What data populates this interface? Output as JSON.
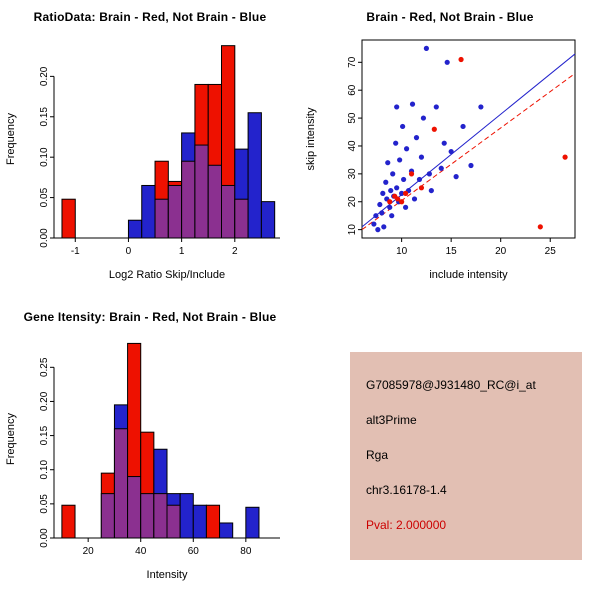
{
  "colors": {
    "red": "#ee1100",
    "blue": "#2323cc",
    "overlap": "#8b3090",
    "axis": "#000000",
    "info_bg": "#e2bfb3",
    "pval": "#cc0000"
  },
  "chart_data": [
    {
      "id": "ratio_histogram",
      "type": "bar",
      "title": "RatioData: Brain - Red, Not Brain - Blue",
      "xlabel": "Log2 Ratio Skip/Include",
      "ylabel": "Frequency",
      "bin_start": -1.25,
      "bin_width": 0.25,
      "xlim": [
        -1.4,
        2.85
      ],
      "ylim": [
        0,
        0.245
      ],
      "xtick_values": [
        -1,
        0,
        1,
        2
      ],
      "xtick_labels": [
        "-1",
        "0",
        "1",
        "2"
      ],
      "ytick_values": [
        0,
        0.05,
        0.1,
        0.15,
        0.2
      ],
      "ytick_labels": [
        "0.00",
        "0.05",
        "0.10",
        "0.15",
        "0.20"
      ],
      "series": [
        {
          "name": "Brain",
          "color": "red",
          "heights": [
            0.048,
            0,
            0,
            0,
            0,
            0,
            0,
            0.095,
            0.07,
            0.095,
            0.19,
            0.19,
            0.238,
            0.048,
            0,
            0
          ]
        },
        {
          "name": "Not Brain",
          "color": "blue",
          "heights": [
            0,
            0,
            0,
            0,
            0,
            0.022,
            0.065,
            0.048,
            0.065,
            0.13,
            0.115,
            0.09,
            0.065,
            0.11,
            0.155,
            0.045
          ]
        }
      ]
    },
    {
      "id": "intensity_scatter",
      "type": "scatter",
      "title": "Brain - Red, Not Brain - Blue",
      "xlabel": "include intensity",
      "ylabel": "skip intensity",
      "xlim": [
        6,
        27.5
      ],
      "ylim": [
        7,
        78
      ],
      "xtick_values": [
        10,
        15,
        20,
        25
      ],
      "xtick_labels": [
        "10",
        "15",
        "20",
        "25"
      ],
      "ytick_values": [
        10,
        20,
        30,
        40,
        50,
        60,
        70
      ],
      "ytick_labels": [
        "10",
        "20",
        "30",
        "40",
        "50",
        "60",
        "70"
      ],
      "series": [
        {
          "name": "Not Brain",
          "color": "blue",
          "points": [
            [
              7.2,
              12
            ],
            [
              7.4,
              15
            ],
            [
              7.6,
              10
            ],
            [
              7.8,
              19
            ],
            [
              8,
              16
            ],
            [
              8.1,
              23
            ],
            [
              8.2,
              11
            ],
            [
              8.4,
              27
            ],
            [
              8.5,
              21
            ],
            [
              8.6,
              34
            ],
            [
              8.8,
              18
            ],
            [
              8.9,
              24
            ],
            [
              9,
              15
            ],
            [
              9.1,
              30
            ],
            [
              9.2,
              22
            ],
            [
              9.4,
              41
            ],
            [
              9.5,
              25
            ],
            [
              9.5,
              54
            ],
            [
              9.7,
              20
            ],
            [
              9.8,
              35
            ],
            [
              10,
              23
            ],
            [
              10.1,
              47
            ],
            [
              10.2,
              28
            ],
            [
              10.4,
              18
            ],
            [
              10.5,
              39
            ],
            [
              10.7,
              24
            ],
            [
              11,
              31
            ],
            [
              11.1,
              55
            ],
            [
              11.3,
              21
            ],
            [
              11.5,
              43
            ],
            [
              11.8,
              28
            ],
            [
              12,
              36
            ],
            [
              12.2,
              50
            ],
            [
              12.5,
              75
            ],
            [
              12.8,
              30
            ],
            [
              13,
              24
            ],
            [
              13.5,
              54
            ],
            [
              14,
              32
            ],
            [
              14.3,
              41
            ],
            [
              14.6,
              70
            ],
            [
              15,
              38
            ],
            [
              15.5,
              29
            ],
            [
              16.2,
              47
            ],
            [
              17,
              33
            ],
            [
              18,
              54
            ]
          ]
        },
        {
          "name": "Brain",
          "color": "red",
          "points": [
            [
              8.8,
              20
            ],
            [
              9.3,
              22
            ],
            [
              9.6,
              21
            ],
            [
              10,
              20
            ],
            [
              10.4,
              23
            ],
            [
              11,
              30
            ],
            [
              12,
              25
            ],
            [
              13.3,
              46
            ],
            [
              16,
              71
            ],
            [
              24,
              11
            ],
            [
              26.5,
              36
            ]
          ]
        }
      ],
      "lines": [
        {
          "name": "brain-fit",
          "color": "red",
          "dash": true,
          "x1": 6,
          "y1": 10,
          "x2": 27.5,
          "y2": 66
        },
        {
          "name": "notbrain-fit",
          "color": "blue",
          "dash": false,
          "x1": 6,
          "y1": 11,
          "x2": 27.5,
          "y2": 73
        }
      ]
    },
    {
      "id": "gene_intensity_histogram",
      "type": "bar",
      "title": "Gene Itensity: Brain - Red, Not Brain - Blue",
      "xlabel": "Intensity",
      "ylabel": "Frequency",
      "bin_start": 10,
      "bin_width": 5,
      "xlim": [
        7,
        93
      ],
      "ylim": [
        0,
        0.29
      ],
      "xtick_values": [
        20,
        40,
        60,
        80
      ],
      "xtick_labels": [
        "20",
        "40",
        "60",
        "80"
      ],
      "ytick_values": [
        0,
        0.05,
        0.1,
        0.15,
        0.2,
        0.25
      ],
      "ytick_labels": [
        "0.00",
        "0.05",
        "0.10",
        "0.15",
        "0.20",
        "0.25"
      ],
      "series": [
        {
          "name": "Brain",
          "color": "red",
          "heights": [
            0.048,
            0,
            0,
            0.095,
            0.16,
            0.285,
            0.155,
            0.065,
            0.048,
            0,
            0,
            0.048,
            0,
            0,
            0,
            0
          ]
        },
        {
          "name": "Not Brain",
          "color": "blue",
          "heights": [
            0,
            0,
            0,
            0.065,
            0.195,
            0.09,
            0.065,
            0.13,
            0.065,
            0.065,
            0.048,
            0,
            0.022,
            0,
            0.045,
            0
          ]
        }
      ]
    }
  ],
  "info_panel": {
    "probe_id": "G7085978@J931480_RC@i_at",
    "event_type": "alt3Prime",
    "gene": "Rga",
    "location": "chr3.16178-1.4",
    "pval": "Pval: 2.000000"
  }
}
